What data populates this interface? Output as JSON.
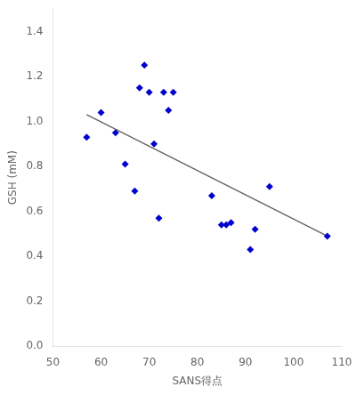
{
  "chart_data": {
    "type": "scatter",
    "xlabel": "SANS得点",
    "ylabel": "GSH (mM)",
    "series": [
      {
        "type": "scatter",
        "color": "#0000cc",
        "marker": "diamond",
        "x": [
          57,
          60,
          63,
          65,
          67,
          68,
          69,
          70,
          71,
          72,
          73,
          74,
          75,
          83,
          85,
          86,
          87,
          91,
          92,
          95,
          107
        ],
        "values": [
          0.93,
          1.04,
          0.95,
          0.81,
          0.69,
          1.15,
          1.25,
          1.13,
          0.9,
          0.57,
          1.13,
          1.05,
          1.13,
          0.67,
          0.54,
          0.54,
          0.55,
          0.43,
          0.52,
          0.71,
          0.49
        ]
      },
      {
        "type": "line",
        "color": "#666666",
        "line_style": "solid",
        "x": [
          57,
          107
        ],
        "values": [
          1.03,
          0.49
        ]
      }
    ],
    "xlim": [
      50,
      110
    ],
    "ylim": [
      0,
      1.5
    ],
    "xticks": [
      50,
      60,
      70,
      80,
      90,
      100,
      110
    ],
    "yticks": [
      {
        "value": 0,
        "label": "0.0"
      },
      0.2,
      0.4,
      0.6,
      0.8,
      {
        "value": 1,
        "label": "1.0"
      },
      1.2,
      1.4
    ],
    "grid": false
  }
}
